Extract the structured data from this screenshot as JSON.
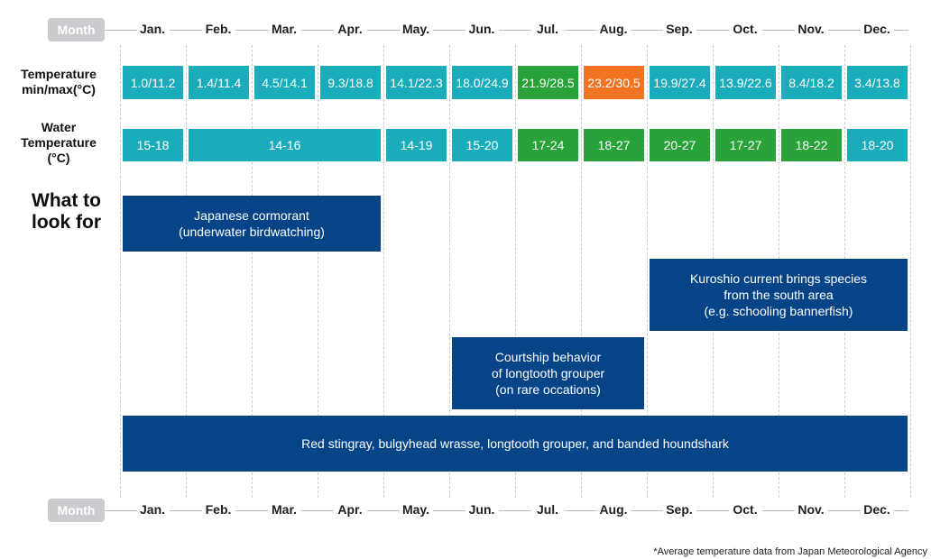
{
  "month_header_label": "Month",
  "months": [
    "Jan.",
    "Feb.",
    "Mar.",
    "Apr.",
    "May.",
    "Jun.",
    "Jul.",
    "Aug.",
    "Sep.",
    "Oct.",
    "Nov.",
    "Dec."
  ],
  "rows": {
    "air_temperature": {
      "label": "Temperature\nmin/max(°C)",
      "cells": [
        {
          "text": "1.0/11.2",
          "start": 0,
          "span": 1,
          "color": "#1aacbb"
        },
        {
          "text": "1.4/11.4",
          "start": 1,
          "span": 1,
          "color": "#1aacbb"
        },
        {
          "text": "4.5/14.1",
          "start": 2,
          "span": 1,
          "color": "#1aacbb"
        },
        {
          "text": "9.3/18.8",
          "start": 3,
          "span": 1,
          "color": "#1aacbb"
        },
        {
          "text": "14.1/22.3",
          "start": 4,
          "span": 1,
          "color": "#1aacbb"
        },
        {
          "text": "18.0/24.9",
          "start": 5,
          "span": 1,
          "color": "#1aacbb"
        },
        {
          "text": "21.9/28.5",
          "start": 6,
          "span": 1,
          "color": "#29a23a"
        },
        {
          "text": "23.2/30.5",
          "start": 7,
          "span": 1,
          "color": "#f27322"
        },
        {
          "text": "19.9/27.4",
          "start": 8,
          "span": 1,
          "color": "#1aacbb"
        },
        {
          "text": "13.9/22.6",
          "start": 9,
          "span": 1,
          "color": "#1aacbb"
        },
        {
          "text": "8.4/18.2",
          "start": 10,
          "span": 1,
          "color": "#1aacbb"
        },
        {
          "text": "3.4/13.8",
          "start": 11,
          "span": 1,
          "color": "#1aacbb"
        }
      ]
    },
    "water_temperature": {
      "label": "Water\nTemperature\n(°C)",
      "cells": [
        {
          "text": "15-18",
          "start": 0,
          "span": 1,
          "color": "#1aacbb"
        },
        {
          "text": "14-16",
          "start": 1,
          "span": 3,
          "color": "#1aacbb"
        },
        {
          "text": "14-19",
          "start": 4,
          "span": 1,
          "color": "#1aacbb"
        },
        {
          "text": "15-20",
          "start": 5,
          "span": 1,
          "color": "#1aacbb"
        },
        {
          "text": "17-24",
          "start": 6,
          "span": 1,
          "color": "#29a23a"
        },
        {
          "text": "18-27",
          "start": 7,
          "span": 1,
          "color": "#29a23a"
        },
        {
          "text": "20-27",
          "start": 8,
          "span": 1,
          "color": "#29a23a"
        },
        {
          "text": "17-27",
          "start": 9,
          "span": 1,
          "color": "#29a23a"
        },
        {
          "text": "18-22",
          "start": 10,
          "span": 1,
          "color": "#29a23a"
        },
        {
          "text": "18-20",
          "start": 11,
          "span": 1,
          "color": "#1aacbb"
        }
      ]
    }
  },
  "what_to_look_for": {
    "title": "What to\nlook for",
    "color": "#064488",
    "items": [
      {
        "text": "Japanese cormorant\n(underwater birdwatching)",
        "start": 0,
        "span": 4
      },
      {
        "text": "Kuroshio current brings species\nfrom the south area\n(e.g. schooling bannerfish)",
        "start": 8,
        "span": 4
      },
      {
        "text": "Courtship behavior\nof longtooth grouper\n(on rare occations)",
        "start": 5,
        "span": 3
      },
      {
        "text": "Red stingray, bulgyhead wrasse, longtooth grouper, and banded houndshark",
        "start": 0,
        "span": 12
      }
    ]
  },
  "footnote": "*Average temperature data from Japan Meteorological Agency"
}
